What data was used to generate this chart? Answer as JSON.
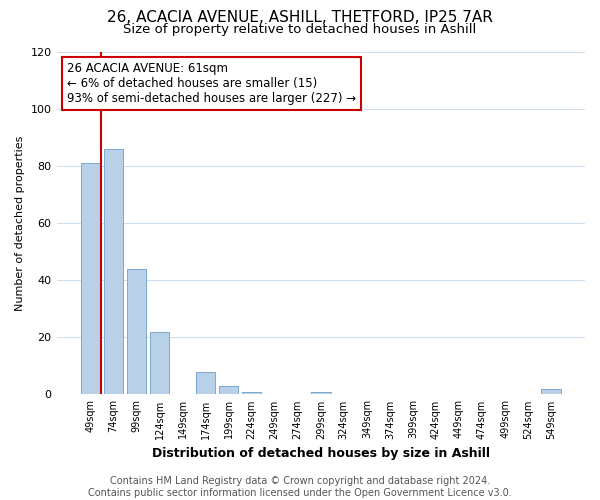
{
  "title1": "26, ACACIA AVENUE, ASHILL, THETFORD, IP25 7AR",
  "title2": "Size of property relative to detached houses in Ashill",
  "xlabel": "Distribution of detached houses by size in Ashill",
  "ylabel": "Number of detached properties",
  "categories": [
    "49sqm",
    "74sqm",
    "99sqm",
    "124sqm",
    "149sqm",
    "174sqm",
    "199sqm",
    "224sqm",
    "249sqm",
    "274sqm",
    "299sqm",
    "324sqm",
    "349sqm",
    "374sqm",
    "399sqm",
    "424sqm",
    "449sqm",
    "474sqm",
    "499sqm",
    "524sqm",
    "549sqm"
  ],
  "values": [
    81,
    86,
    44,
    22,
    0,
    8,
    3,
    1,
    0,
    0,
    1,
    0,
    0,
    0,
    0,
    0,
    0,
    0,
    0,
    0,
    2
  ],
  "bar_color": "#b8d0e8",
  "bar_edge_color": "#6aa0c8",
  "background_color": "#ffffff",
  "grid_color": "#ccddf0",
  "ylim": [
    0,
    120
  ],
  "yticks": [
    0,
    20,
    40,
    60,
    80,
    100,
    120
  ],
  "red_line_x": 0.48,
  "annotation_text": "26 ACACIA AVENUE: 61sqm\n← 6% of detached houses are smaller (15)\n93% of semi-detached houses are larger (227) →",
  "annotation_box_color": "#ffffff",
  "annotation_box_edge": "#cc0000",
  "footer_text": "Contains HM Land Registry data © Crown copyright and database right 2024.\nContains public sector information licensed under the Open Government Licence v3.0.",
  "title1_fontsize": 11,
  "title2_fontsize": 9.5,
  "annotation_fontsize": 8.5,
  "footer_fontsize": 7,
  "ylabel_fontsize": 8,
  "xlabel_fontsize": 9
}
